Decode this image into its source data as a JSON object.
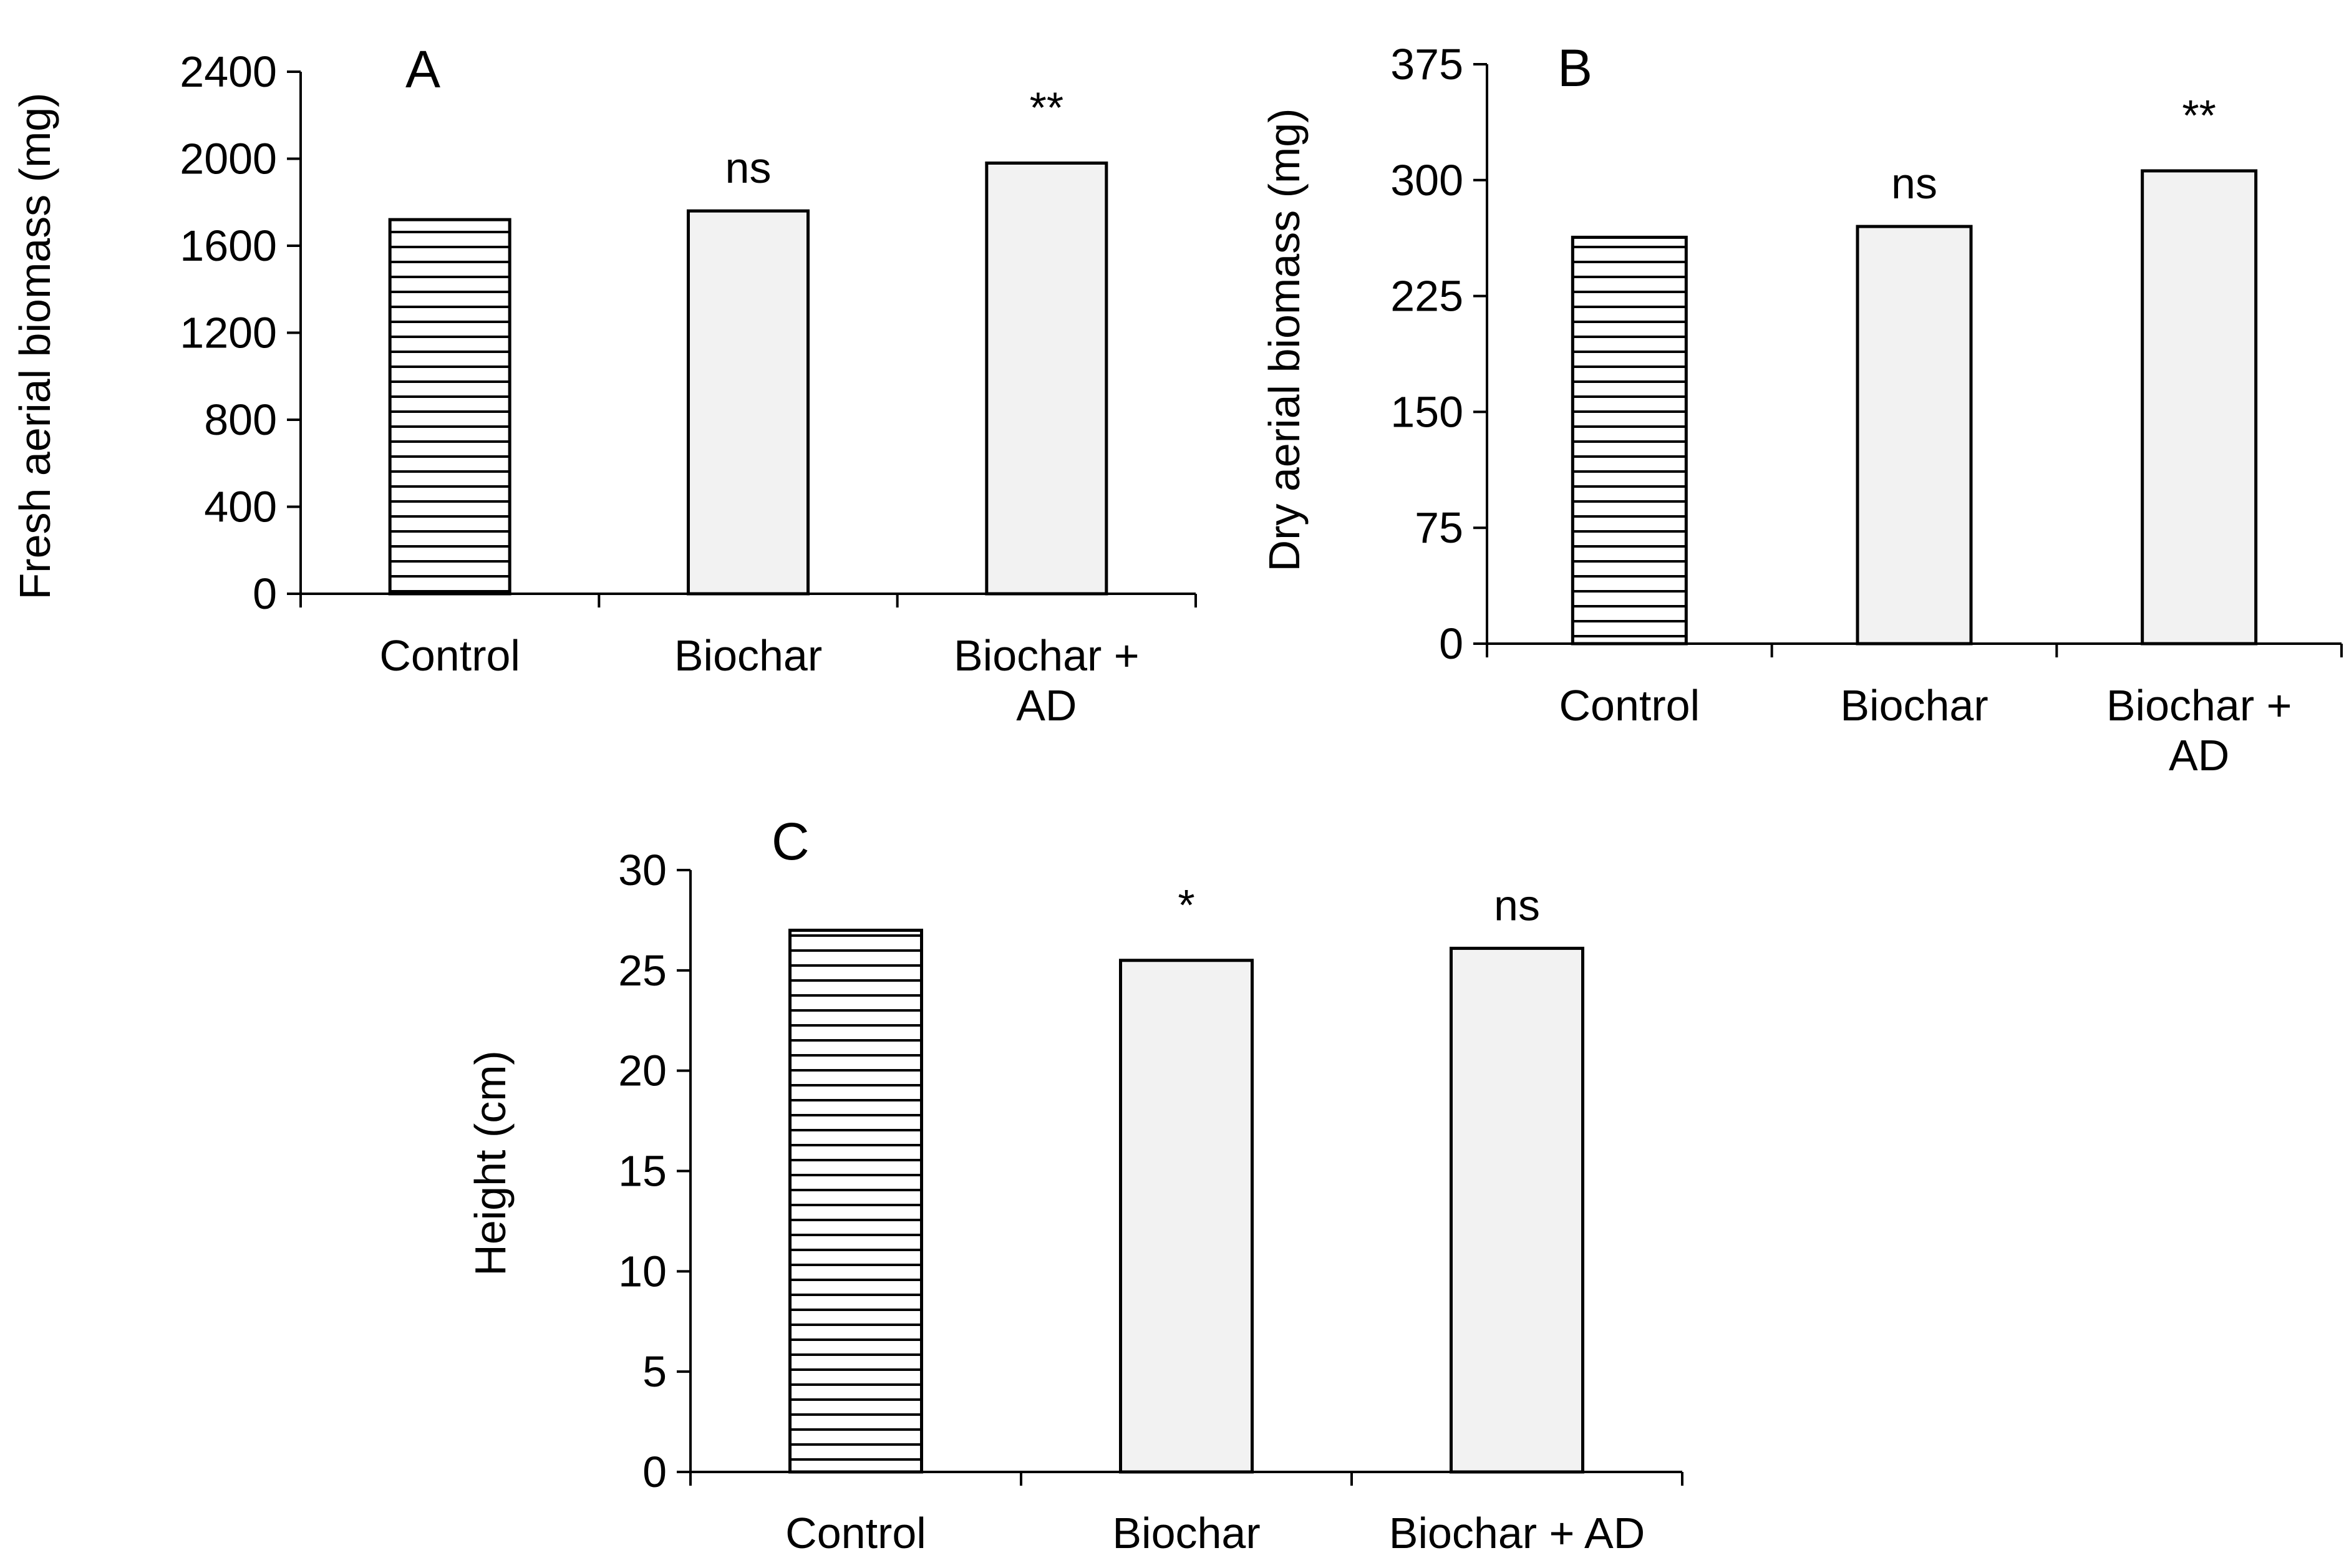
{
  "chart_data": [
    {
      "type": "bar",
      "panel": "A",
      "categories": [
        "Control",
        "Biochar",
        "Biochar + AD"
      ],
      "category_lines": [
        [
          "Control"
        ],
        [
          "Biochar"
        ],
        [
          "Biochar +",
          "AD"
        ]
      ],
      "values": [
        1720,
        1760,
        1980
      ],
      "significance": [
        "",
        "ns",
        "**"
      ],
      "ylabel": "Fresh aerial biomass (mg)",
      "xlabel": "",
      "ylim": [
        0,
        2400
      ],
      "yticks": [
        0,
        400,
        800,
        1200,
        1600,
        2000,
        2400
      ],
      "bar_styles": [
        "horizontal-stripes",
        "light-gray",
        "light-gray"
      ],
      "grid": false
    },
    {
      "type": "bar",
      "panel": "B",
      "categories": [
        "Control",
        "Biochar",
        "Biochar + AD"
      ],
      "category_lines": [
        [
          "Control"
        ],
        [
          "Biochar"
        ],
        [
          "Biochar +",
          "AD"
        ]
      ],
      "values": [
        263,
        270,
        306
      ],
      "significance": [
        "",
        "ns",
        "**"
      ],
      "ylabel": "Dry aerial biomass (mg)",
      "xlabel": "",
      "ylim": [
        0,
        375
      ],
      "yticks": [
        0,
        75,
        150,
        225,
        300,
        375
      ],
      "bar_styles": [
        "horizontal-stripes",
        "light-gray",
        "light-gray"
      ],
      "grid": false
    },
    {
      "type": "bar",
      "panel": "C",
      "categories": [
        "Control",
        "Biochar",
        "Biochar + AD"
      ],
      "category_lines": [
        [
          "Control"
        ],
        [
          "Biochar"
        ],
        [
          "Biochar + AD"
        ]
      ],
      "values": [
        27,
        25.5,
        26.1
      ],
      "significance": [
        "",
        "*",
        "ns"
      ],
      "ylabel": "Height (cm)",
      "xlabel": "",
      "ylim": [
        0,
        30
      ],
      "yticks": [
        0,
        5,
        10,
        15,
        20,
        25,
        30
      ],
      "bar_styles": [
        "horizontal-stripes",
        "light-gray",
        "light-gray"
      ],
      "grid": false
    }
  ],
  "colors": {
    "bar_fill": "#f2f2f2",
    "stripe_background": "#ffffff",
    "stripe_line": "#000000",
    "outline": "#000000"
  }
}
